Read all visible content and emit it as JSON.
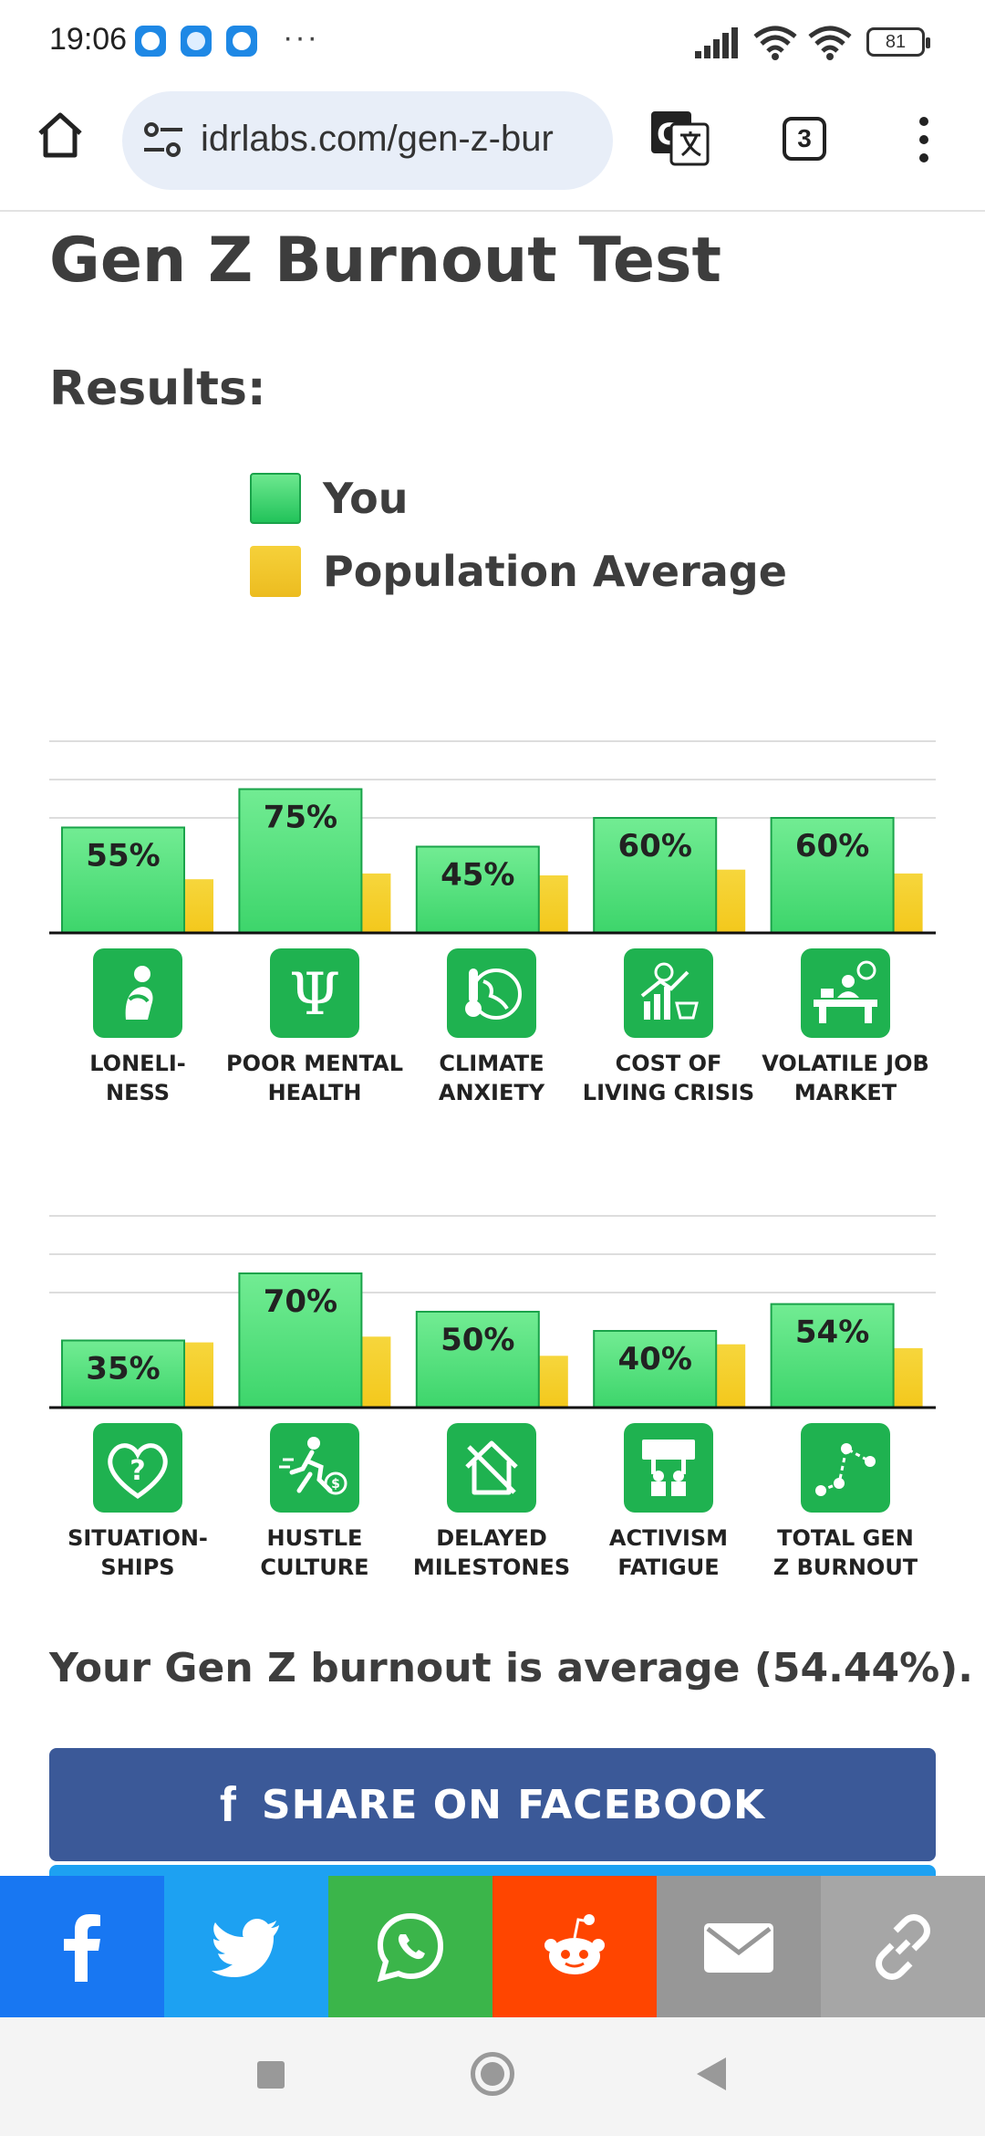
{
  "status_bar": {
    "time": "19:06",
    "overflow_dots": "···",
    "battery": "81"
  },
  "browser": {
    "url": "idrlabs.com/gen-z-bur",
    "tab_count": "3"
  },
  "page": {
    "title": "Gen Z Burnout Test",
    "results_heading": "Results:",
    "legend": {
      "you": "You",
      "population": "Population Average"
    },
    "summary": "Your Gen Z burnout is average (54.44%).",
    "facebook_button": {
      "icon": "f",
      "label": "SHARE ON FACEBOOK"
    }
  },
  "colors": {
    "you_bar": "#3dd56b",
    "population_bar": "#f3c81c",
    "icon_tile": "#1fb250",
    "facebook": "#3b5998",
    "twitter": "#1da1f2",
    "whatsapp": "#3bb54a",
    "reddit": "#ff4500",
    "email": "#979797",
    "link": "#a6a6a6"
  },
  "chart_data": [
    {
      "type": "bar",
      "categories": [
        "LONELI-\nNESS",
        "POOR MENTAL\nHEALTH",
        "CLIMATE\nANXIETY",
        "COST OF\nLIVING CRISIS",
        "VOLATILE JOB\nMARKET"
      ],
      "icons": [
        "loneliness-icon",
        "psi-icon",
        "climate-icon",
        "cost-of-living-icon",
        "job-market-icon"
      ],
      "series": [
        {
          "name": "You",
          "values": [
            55,
            75,
            45,
            60,
            60
          ],
          "labels": [
            "55%",
            "75%",
            "45%",
            "60%",
            "60%"
          ]
        },
        {
          "name": "Population Average",
          "values": [
            28,
            31,
            30,
            33,
            31
          ]
        }
      ],
      "ylim": [
        0,
        100
      ],
      "grid": true,
      "legend": "top"
    },
    {
      "type": "bar",
      "categories": [
        "SITUATION-\nSHIPS",
        "HUSTLE\nCULTURE",
        "DELAYED\nMILESTONES",
        "ACTIVISM\nFATIGUE",
        "TOTAL GEN\nZ BURNOUT"
      ],
      "icons": [
        "heart-question-icon",
        "hustle-icon",
        "house-icon",
        "activism-icon",
        "burnout-graph-icon"
      ],
      "series": [
        {
          "name": "You",
          "values": [
            35,
            70,
            50,
            40,
            54
          ],
          "labels": [
            "35%",
            "70%",
            "50%",
            "40%",
            "54%"
          ]
        },
        {
          "name": "Population Average",
          "values": [
            34,
            37,
            27,
            33,
            31
          ]
        }
      ],
      "ylim": [
        0,
        100
      ],
      "grid": true,
      "legend": "top"
    }
  ],
  "share_bar": [
    "facebook-icon",
    "twitter-icon",
    "whatsapp-icon",
    "reddit-icon",
    "email-icon",
    "link-icon"
  ]
}
